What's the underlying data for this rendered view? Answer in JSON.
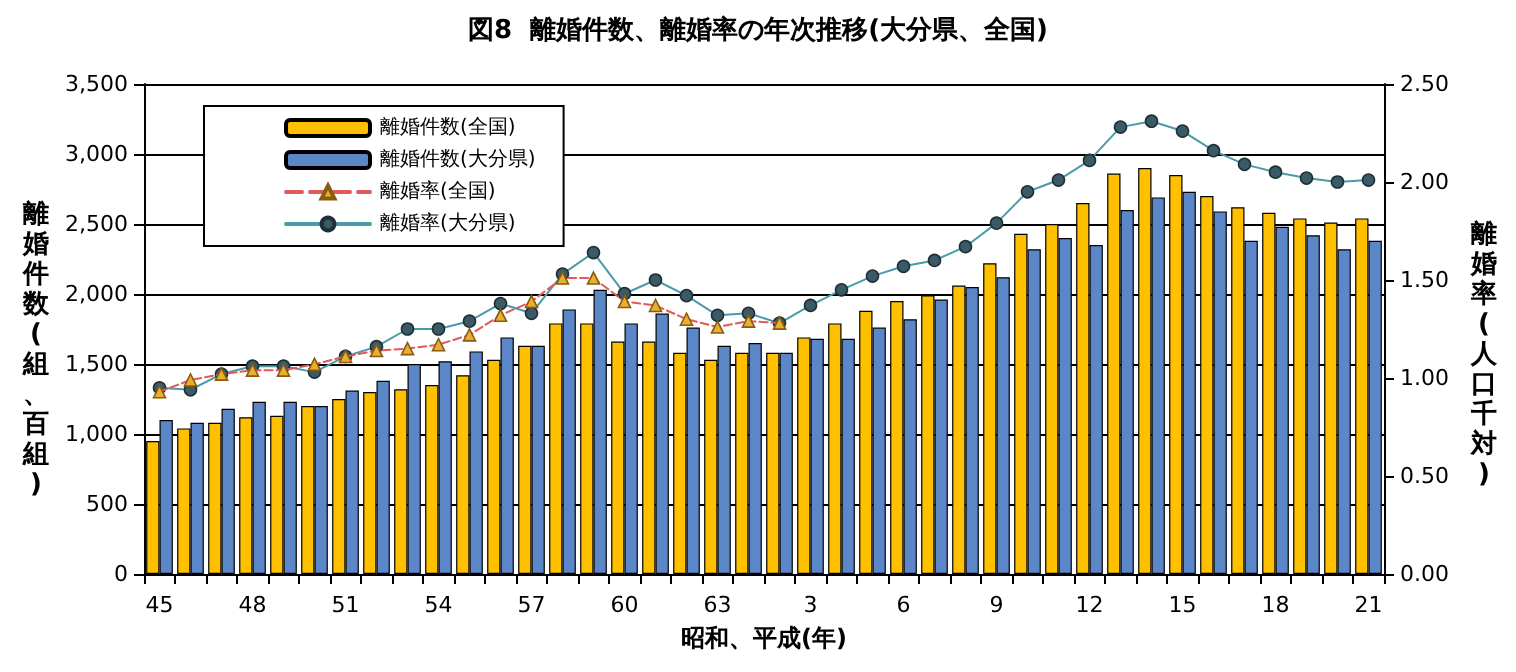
{
  "chart_data": {
    "type": "bar",
    "title": "図8  離婚件数、離婚率の年次推移(大分県、全国)",
    "xlabel": "昭和、平成(年)",
    "ylabel": "離婚件数(組、百組)",
    "y2label": "離婚率(人口千対)",
    "categories": [
      "45",
      null,
      null,
      "48",
      null,
      null,
      "51",
      null,
      null,
      "54",
      null,
      null,
      "57",
      null,
      null,
      "60",
      null,
      null,
      "63",
      null,
      null,
      "3",
      null,
      null,
      "6",
      null,
      null,
      "9",
      null,
      null,
      "12",
      null,
      null,
      "15",
      null,
      null,
      "18",
      null,
      null,
      "21"
    ],
    "series": [
      {
        "name": "離婚件数(全国)",
        "color": "#ffc000",
        "values": [
          950,
          1040,
          1080,
          1120,
          1130,
          1200,
          1250,
          1300,
          1320,
          1350,
          1420,
          1530,
          1630,
          1790,
          1790,
          1660,
          1660,
          1580,
          1530,
          1580,
          1580,
          1690,
          1790,
          1880,
          1950,
          1990,
          2060,
          2220,
          2430,
          2500,
          2650,
          2860,
          2900,
          2850,
          2700,
          2620,
          2580,
          2540,
          2510,
          2540
        ]
      },
      {
        "name": "離婚件数(大分県)",
        "color": "#5b87c9",
        "values": [
          1100,
          1080,
          1180,
          1230,
          1230,
          1200,
          1310,
          1380,
          1500,
          1520,
          1590,
          1690,
          1630,
          1890,
          2030,
          1790,
          1860,
          1760,
          1630,
          1650,
          1580,
          1680,
          1680,
          1760,
          1820,
          1960,
          2050,
          2120,
          2320,
          2400,
          2350,
          2600,
          2690,
          2730,
          2590,
          2380,
          2480,
          2420,
          2320,
          2380
        ]
      },
      {
        "name": "離婚率(全国)",
        "type": "line",
        "axis": "y2",
        "color": "#e05a5a",
        "marker": "triangle",
        "line_style": "dashed",
        "values": [
          0.93,
          0.99,
          1.02,
          1.04,
          1.04,
          1.07,
          1.11,
          1.14,
          1.15,
          1.17,
          1.22,
          1.32,
          1.39,
          1.51,
          1.51,
          1.39,
          1.37,
          1.3,
          1.26,
          1.29,
          1.28,
          null,
          null,
          null,
          null,
          null,
          null,
          null,
          null,
          null,
          null,
          null,
          null,
          null,
          null,
          null,
          null,
          null,
          null,
          null
        ]
      },
      {
        "name": "離婚率(大分県)",
        "type": "line",
        "axis": "y2",
        "color": "#4a9aaa",
        "marker": "circle",
        "line_style": "solid",
        "values": [
          0.95,
          0.94,
          1.02,
          1.06,
          1.06,
          1.03,
          1.11,
          1.16,
          1.25,
          1.25,
          1.29,
          1.38,
          1.33,
          1.53,
          1.64,
          1.43,
          1.5,
          1.42,
          1.32,
          1.33,
          1.28,
          1.37,
          1.45,
          1.52,
          1.57,
          1.6,
          1.67,
          1.79,
          1.95,
          2.01,
          2.11,
          2.28,
          2.31,
          2.26,
          2.16,
          2.09,
          2.05,
          2.02,
          2.0,
          2.01
        ]
      }
    ],
    "ylim": [
      0,
      3500
    ],
    "yticks": [
      {
        "value": 0,
        "label": "0"
      },
      {
        "value": 500,
        "label": "500"
      },
      {
        "value": 1000,
        "label": "1,000"
      },
      {
        "value": 1500,
        "label": "1,500"
      },
      {
        "value": 2000,
        "label": "2,000"
      },
      {
        "value": 2500,
        "label": "2,500"
      },
      {
        "value": 3000,
        "label": "3,000"
      },
      {
        "value": 3500,
        "label": "3,500"
      }
    ],
    "y2lim": [
      0,
      2.5
    ],
    "y2ticks": [
      {
        "value": 0,
        "label": "0.00"
      },
      {
        "value": 0.5,
        "label": "0.50"
      },
      {
        "value": 1,
        "label": "1.00"
      },
      {
        "value": 1.5,
        "label": "1.50"
      },
      {
        "value": 2,
        "label": "2.00"
      },
      {
        "value": 2.5,
        "label": "2.50"
      }
    ],
    "grid": "y",
    "legend": "top left"
  }
}
